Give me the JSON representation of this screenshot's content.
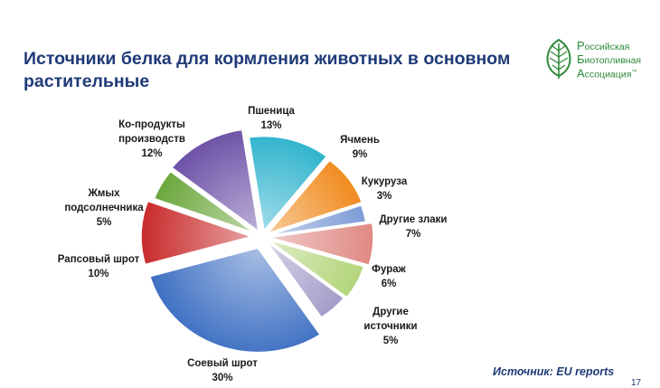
{
  "title": "Источники белка для кормления животных в основном растительные",
  "logo": {
    "line1_cap": "Р",
    "line1_rest": "оссийская",
    "line2_cap": "Б",
    "line2_rest": "иотопливная",
    "line3_cap": "А",
    "line3_rest": "ссоциация",
    "trademark": "™"
  },
  "source": "Источник: EU reports",
  "page_number": "17",
  "chart_data": {
    "type": "pie",
    "title": "Источники белка для кормления животных в основном растительные",
    "unit": "%",
    "slices": [
      {
        "label": [
          "Пшеница"
        ],
        "value": 13,
        "value_label": "13%",
        "color": "#2bb2cc"
      },
      {
        "label": [
          "Ячмень"
        ],
        "value": 9,
        "value_label": "9%",
        "color": "#f08a1c"
      },
      {
        "label": [
          "Кукуруза"
        ],
        "value": 3,
        "value_label": "3%",
        "color": "#7d9cd6"
      },
      {
        "label": [
          "Другие злаки"
        ],
        "value": 7,
        "value_label": "7%",
        "color": "#e08984"
      },
      {
        "label": [
          "Фураж"
        ],
        "value": 6,
        "value_label": "6%",
        "color": "#b3d57a"
      },
      {
        "label": [
          "Другие",
          "источники"
        ],
        "value": 5,
        "value_label": "5%",
        "color": "#a39bc8"
      },
      {
        "label": [
          "Соевый шрот"
        ],
        "value": 30,
        "value_label": "30%",
        "color": "#3d6fc2"
      },
      {
        "label": [
          "Рапсовый шрот"
        ],
        "value": 10,
        "value_label": "10%",
        "color": "#c92b2b"
      },
      {
        "label": [
          "Жмых",
          "подсолнечника"
        ],
        "value": 5,
        "value_label": "5%",
        "color": "#6aa63a"
      },
      {
        "label": [
          "Ко-продукты",
          "производств"
        ],
        "value": 12,
        "value_label": "12%",
        "color": "#6a4ea5"
      }
    ]
  }
}
